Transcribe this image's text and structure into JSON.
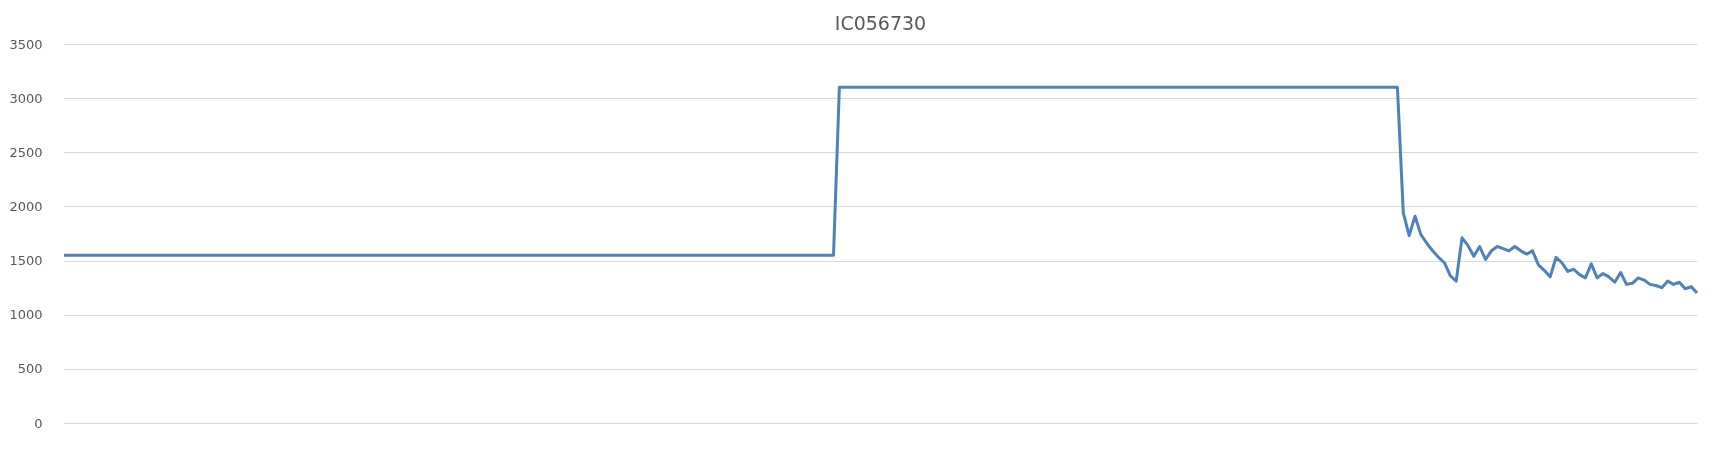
{
  "chart_data": {
    "type": "line",
    "title": "IC056730",
    "categories": [
      null,
      null,
      null,
      null,
      null,
      null,
      null,
      null,
      null,
      null,
      null,
      null,
      null,
      null,
      null,
      null,
      null,
      null,
      null,
      null,
      null,
      null,
      null,
      null,
      null,
      null,
      null,
      null,
      null,
      null,
      null,
      null,
      null,
      null,
      null,
      null,
      null,
      null,
      null,
      null,
      null,
      null,
      null,
      null,
      null,
      null,
      null,
      null,
      null,
      null,
      null,
      null,
      null,
      null,
      null,
      null,
      null,
      null,
      null,
      null,
      null,
      null,
      null,
      null,
      null,
      null,
      null,
      null,
      null,
      null,
      null,
      null,
      null,
      null,
      null,
      null,
      null,
      null,
      null,
      null,
      null,
      null,
      null,
      null,
      null,
      null,
      null,
      null,
      null,
      null,
      null,
      null,
      null,
      null,
      null,
      null,
      null,
      null,
      null,
      null,
      null,
      null,
      null,
      null,
      null,
      null,
      null,
      null,
      null,
      null,
      null,
      null,
      null,
      null,
      null,
      null,
      null,
      null,
      null,
      null,
      null,
      null,
      null,
      null,
      null,
      null,
      null,
      null,
      null,
      null,
      null,
      null,
      null,
      null,
      null,
      null,
      null,
      null,
      null,
      null,
      null,
      null,
      null,
      null,
      null,
      null,
      null,
      null,
      null,
      null,
      null,
      null,
      null,
      null,
      null,
      null,
      null,
      null,
      null,
      null,
      null,
      null,
      null,
      null,
      null,
      null,
      null,
      null,
      null,
      null,
      null,
      null,
      null,
      null,
      null,
      null,
      null,
      null,
      null,
      null,
      null,
      null,
      null,
      null,
      null,
      null,
      null,
      null,
      null,
      null,
      null,
      null,
      null,
      null,
      null,
      null,
      null,
      null,
      null,
      null,
      null,
      null,
      null,
      null,
      null,
      null,
      null,
      null,
      null,
      null,
      null,
      null,
      null,
      null,
      null,
      null,
      null,
      null,
      null,
      null,
      null,
      null,
      null,
      null,
      null,
      null,
      null,
      null,
      null,
      null,
      null,
      null,
      null,
      null,
      null,
      null,
      null,
      null,
      null,
      null,
      null,
      null,
      null,
      null,
      null,
      null,
      null,
      null,
      null,
      null,
      null,
      null,
      null,
      null,
      null,
      null,
      null,
      null,
      null,
      null,
      null,
      null,
      null,
      null,
      null,
      null,
      null,
      null,
      null,
      null,
      null,
      null,
      null,
      null,
      null,
      null,
      null,
      null,
      null
    ],
    "series": [
      {
        "color": "#4f81bd",
        "values": [
          1550,
          1550,
          1550,
          1550,
          1550,
          1550,
          1550,
          1550,
          1550,
          1550,
          1550,
          1550,
          1550,
          1550,
          1550,
          1550,
          1550,
          1550,
          1550,
          1550,
          1550,
          1550,
          1550,
          1550,
          1550,
          1550,
          1550,
          1550,
          1550,
          1550,
          1550,
          1550,
          1550,
          1550,
          1550,
          1550,
          1550,
          1550,
          1550,
          1550,
          1550,
          1550,
          1550,
          1550,
          1550,
          1550,
          1550,
          1550,
          1550,
          1550,
          1550,
          1550,
          1550,
          1550,
          1550,
          1550,
          1550,
          1550,
          1550,
          1550,
          1550,
          1550,
          1550,
          1550,
          1550,
          1550,
          1550,
          1550,
          1550,
          1550,
          1550,
          1550,
          1550,
          1550,
          1550,
          1550,
          1550,
          1550,
          1550,
          1550,
          1550,
          1550,
          1550,
          1550,
          1550,
          1550,
          1550,
          1550,
          1550,
          1550,
          1550,
          1550,
          1550,
          1550,
          1550,
          1550,
          1550,
          1550,
          1550,
          1550,
          1550,
          1550,
          1550,
          1550,
          1550,
          1550,
          1550,
          1550,
          1550,
          1550,
          1550,
          1550,
          1550,
          1550,
          1550,
          1550,
          1550,
          1550,
          1550,
          1550,
          1550,
          1550,
          1550,
          1550,
          1550,
          1550,
          1550,
          1550,
          1550,
          1550,
          1550,
          1550,
          3100,
          3100,
          3100,
          3100,
          3100,
          3100,
          3100,
          3100,
          3100,
          3100,
          3100,
          3100,
          3100,
          3100,
          3100,
          3100,
          3100,
          3100,
          3100,
          3100,
          3100,
          3100,
          3100,
          3100,
          3100,
          3100,
          3100,
          3100,
          3100,
          3100,
          3100,
          3100,
          3100,
          3100,
          3100,
          3100,
          3100,
          3100,
          3100,
          3100,
          3100,
          3100,
          3100,
          3100,
          3100,
          3100,
          3100,
          3100,
          3100,
          3100,
          3100,
          3100,
          3100,
          3100,
          3100,
          3100,
          3100,
          3100,
          3100,
          3100,
          3100,
          3100,
          3100,
          3100,
          3100,
          3100,
          3100,
          3100,
          3100,
          3100,
          3100,
          3100,
          3100,
          3100,
          3100,
          3100,
          3100,
          3100,
          3100,
          3100,
          3100,
          3100,
          3100,
          3100,
          3100,
          3100,
          3100,
          3100,
          3100,
          3100,
          3100,
          3100,
          3100,
          3100,
          3100,
          3100,
          1940,
          1730,
          1910,
          1740,
          1660,
          1590,
          1530,
          1480,
          1360,
          1310,
          1710,
          1640,
          1540,
          1630,
          1510,
          1590,
          1630,
          1610,
          1590,
          1630,
          1590,
          1560,
          1590,
          1460,
          1410,
          1350,
          1530,
          1480,
          1400,
          1420,
          1370,
          1340,
          1470,
          1340,
          1380,
          1350,
          1300,
          1390,
          1280,
          1290,
          1340,
          1320,
          1280,
          1270,
          1250,
          1310,
          1280,
          1300,
          1240,
          1260,
          1200
        ]
      }
    ],
    "ylim": [
      0,
      3500
    ],
    "yticks": [
      0,
      500,
      1000,
      1500,
      2000,
      2500,
      3000,
      3500
    ],
    "grid": "y",
    "tick_labels": "y",
    "marker": "none",
    "line_style": "solid"
  }
}
